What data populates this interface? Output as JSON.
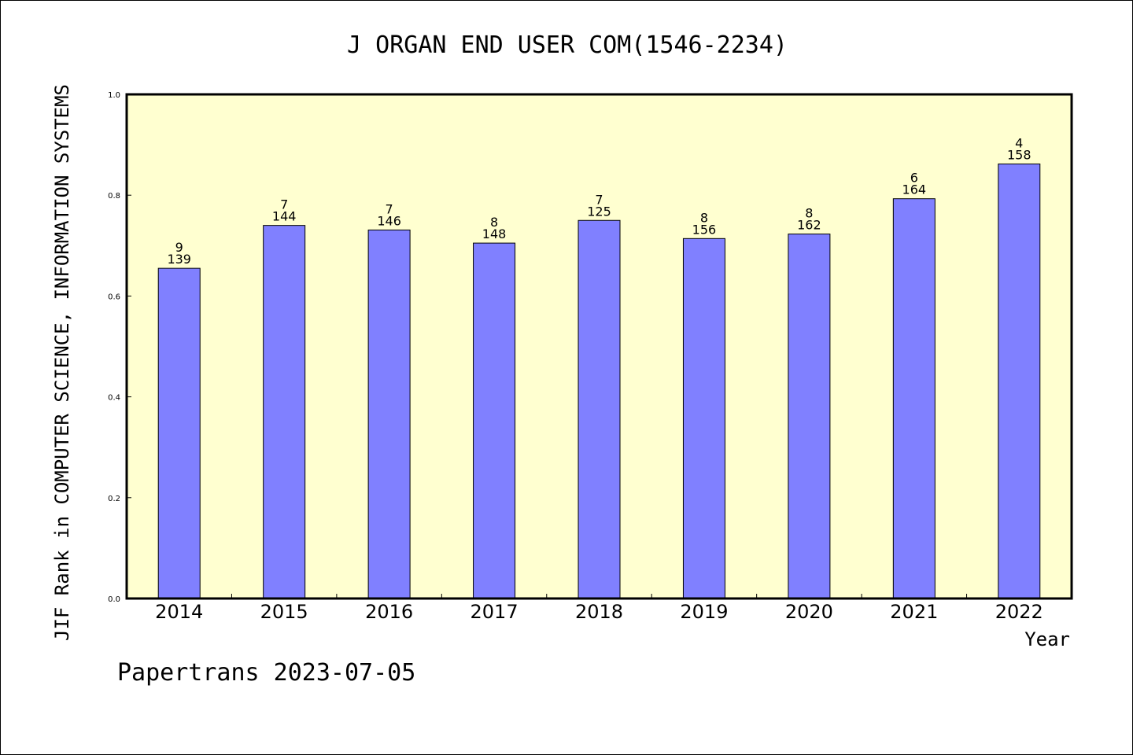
{
  "chart_data": {
    "type": "bar",
    "title": "J ORGAN END USER COM(1546-2234)",
    "xlabel": "Year",
    "ylabel": "JIF Rank in COMPUTER SCIENCE, INFORMATION SYSTEMS",
    "ylim": [
      0,
      1.0
    ],
    "yticks": [
      "0.0",
      "0.2",
      "0.4",
      "0.6",
      "0.8",
      "1.0"
    ],
    "categories": [
      "2014",
      "2015",
      "2016",
      "2017",
      "2018",
      "2019",
      "2020",
      "2021",
      "2022"
    ],
    "values": [
      0.655,
      0.74,
      0.731,
      0.705,
      0.75,
      0.714,
      0.723,
      0.793,
      0.862
    ],
    "rank": [
      "9",
      "7",
      "7",
      "8",
      "7",
      "8",
      "8",
      "6",
      "4"
    ],
    "total": [
      "139",
      "144",
      "146",
      "148",
      "125",
      "156",
      "162",
      "164",
      "158"
    ],
    "bar_color": "#8080ff",
    "plot_background": "#ffffd0",
    "grid": false,
    "legend": "none"
  },
  "footer": {
    "watermark": "Papertrans 2023-07-05"
  }
}
